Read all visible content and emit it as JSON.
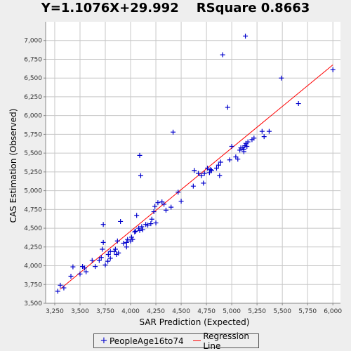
{
  "chart_data": {
    "type": "scatter",
    "title": "Y=1.1076X+29.992    RSquare 0.8663",
    "xlabel": "SAR Prediction (Expected)",
    "ylabel": "CAS Estimation (Observed)",
    "xlim": [
      3160,
      6075
    ],
    "ylim": [
      3500,
      7250
    ],
    "x_ticks": [
      "3,250",
      "3,500",
      "3,750",
      "4,000",
      "4,250",
      "4,500",
      "4,750",
      "5,000",
      "5,250",
      "5,500",
      "5,750",
      "6,000"
    ],
    "x_tick_values": [
      3250,
      3500,
      3750,
      4000,
      4250,
      4500,
      4750,
      5000,
      5250,
      5500,
      5750,
      6000
    ],
    "y_ticks": [
      "3,500",
      "3,750",
      "4,000",
      "4,250",
      "4,500",
      "4,750",
      "5,000",
      "5,250",
      "5,500",
      "5,750",
      "6,000",
      "6,250",
      "6,500",
      "6,750",
      "7,000"
    ],
    "y_tick_values": [
      3500,
      3750,
      4000,
      4250,
      4500,
      4750,
      5000,
      5250,
      5500,
      5750,
      6000,
      6250,
      6500,
      6750,
      7000
    ],
    "grid": true,
    "legend_position": "bottom",
    "colors": {
      "points": "#0000cc",
      "regression": "#ff0000",
      "plot_bg": "#ffffff",
      "grid": "#c8c8c8"
    },
    "regression": {
      "slope": 1.1076,
      "intercept": 29.992,
      "x_range": [
        3300,
        6000
      ]
    },
    "series": [
      {
        "name": "PeopleAge16to74",
        "marker": "+",
        "points": [
          [
            3280,
            3660
          ],
          [
            3305,
            3740
          ],
          [
            3340,
            3705
          ],
          [
            3410,
            3860
          ],
          [
            3430,
            3985
          ],
          [
            3500,
            3890
          ],
          [
            3525,
            3990
          ],
          [
            3545,
            3970
          ],
          [
            3560,
            3920
          ],
          [
            3620,
            4070
          ],
          [
            3650,
            3990
          ],
          [
            3690,
            4070
          ],
          [
            3710,
            4110
          ],
          [
            3720,
            4220
          ],
          [
            3730,
            4310
          ],
          [
            3730,
            4550
          ],
          [
            3750,
            4010
          ],
          [
            3775,
            4060
          ],
          [
            3780,
            4150
          ],
          [
            3800,
            4100
          ],
          [
            3800,
            4190
          ],
          [
            3840,
            4190
          ],
          [
            3850,
            4220
          ],
          [
            3860,
            4150
          ],
          [
            3870,
            4330
          ],
          [
            3880,
            4170
          ],
          [
            3900,
            4590
          ],
          [
            3930,
            4300
          ],
          [
            3960,
            4250
          ],
          [
            3960,
            4310
          ],
          [
            3970,
            4350
          ],
          [
            4000,
            4330
          ],
          [
            4010,
            4380
          ],
          [
            4020,
            4350
          ],
          [
            4040,
            4450
          ],
          [
            4050,
            4460
          ],
          [
            4060,
            4670
          ],
          [
            4080,
            4500
          ],
          [
            4090,
            4470
          ],
          [
            4090,
            5470
          ],
          [
            4100,
            5200
          ],
          [
            4110,
            4520
          ],
          [
            4120,
            4480
          ],
          [
            4150,
            4550
          ],
          [
            4170,
            4540
          ],
          [
            4200,
            4560
          ],
          [
            4210,
            4620
          ],
          [
            4230,
            4720
          ],
          [
            4240,
            4790
          ],
          [
            4250,
            4570
          ],
          [
            4270,
            4840
          ],
          [
            4310,
            4850
          ],
          [
            4330,
            4820
          ],
          [
            4350,
            4740
          ],
          [
            4400,
            4780
          ],
          [
            4420,
            5780
          ],
          [
            4470,
            4980
          ],
          [
            4500,
            4860
          ],
          [
            4620,
            5060
          ],
          [
            4630,
            5270
          ],
          [
            4670,
            5230
          ],
          [
            4700,
            5200
          ],
          [
            4720,
            5100
          ],
          [
            4730,
            5230
          ],
          [
            4760,
            5300
          ],
          [
            4780,
            5240
          ],
          [
            4790,
            5280
          ],
          [
            4800,
            5270
          ],
          [
            4850,
            5300
          ],
          [
            4870,
            5340
          ],
          [
            4880,
            5200
          ],
          [
            4890,
            5380
          ],
          [
            4910,
            6810
          ],
          [
            4960,
            6110
          ],
          [
            4980,
            5410
          ],
          [
            5000,
            5590
          ],
          [
            5040,
            5450
          ],
          [
            5060,
            5420
          ],
          [
            5080,
            5540
          ],
          [
            5090,
            5570
          ],
          [
            5110,
            5570
          ],
          [
            5120,
            5550
          ],
          [
            5120,
            5520
          ],
          [
            5130,
            5600
          ],
          [
            5135,
            7060
          ],
          [
            5140,
            5630
          ],
          [
            5150,
            5590
          ],
          [
            5160,
            5650
          ],
          [
            5200,
            5680
          ],
          [
            5220,
            5700
          ],
          [
            5300,
            5790
          ],
          [
            5320,
            5720
          ],
          [
            5370,
            5790
          ],
          [
            5490,
            6500
          ],
          [
            5660,
            6160
          ],
          [
            6000,
            6610
          ]
        ]
      },
      {
        "name": "Regression Line",
        "type": "line"
      }
    ]
  },
  "legend": {
    "points_label": "PeopleAge16to74",
    "points_symbol": "+",
    "line_label": "Regression Line"
  }
}
